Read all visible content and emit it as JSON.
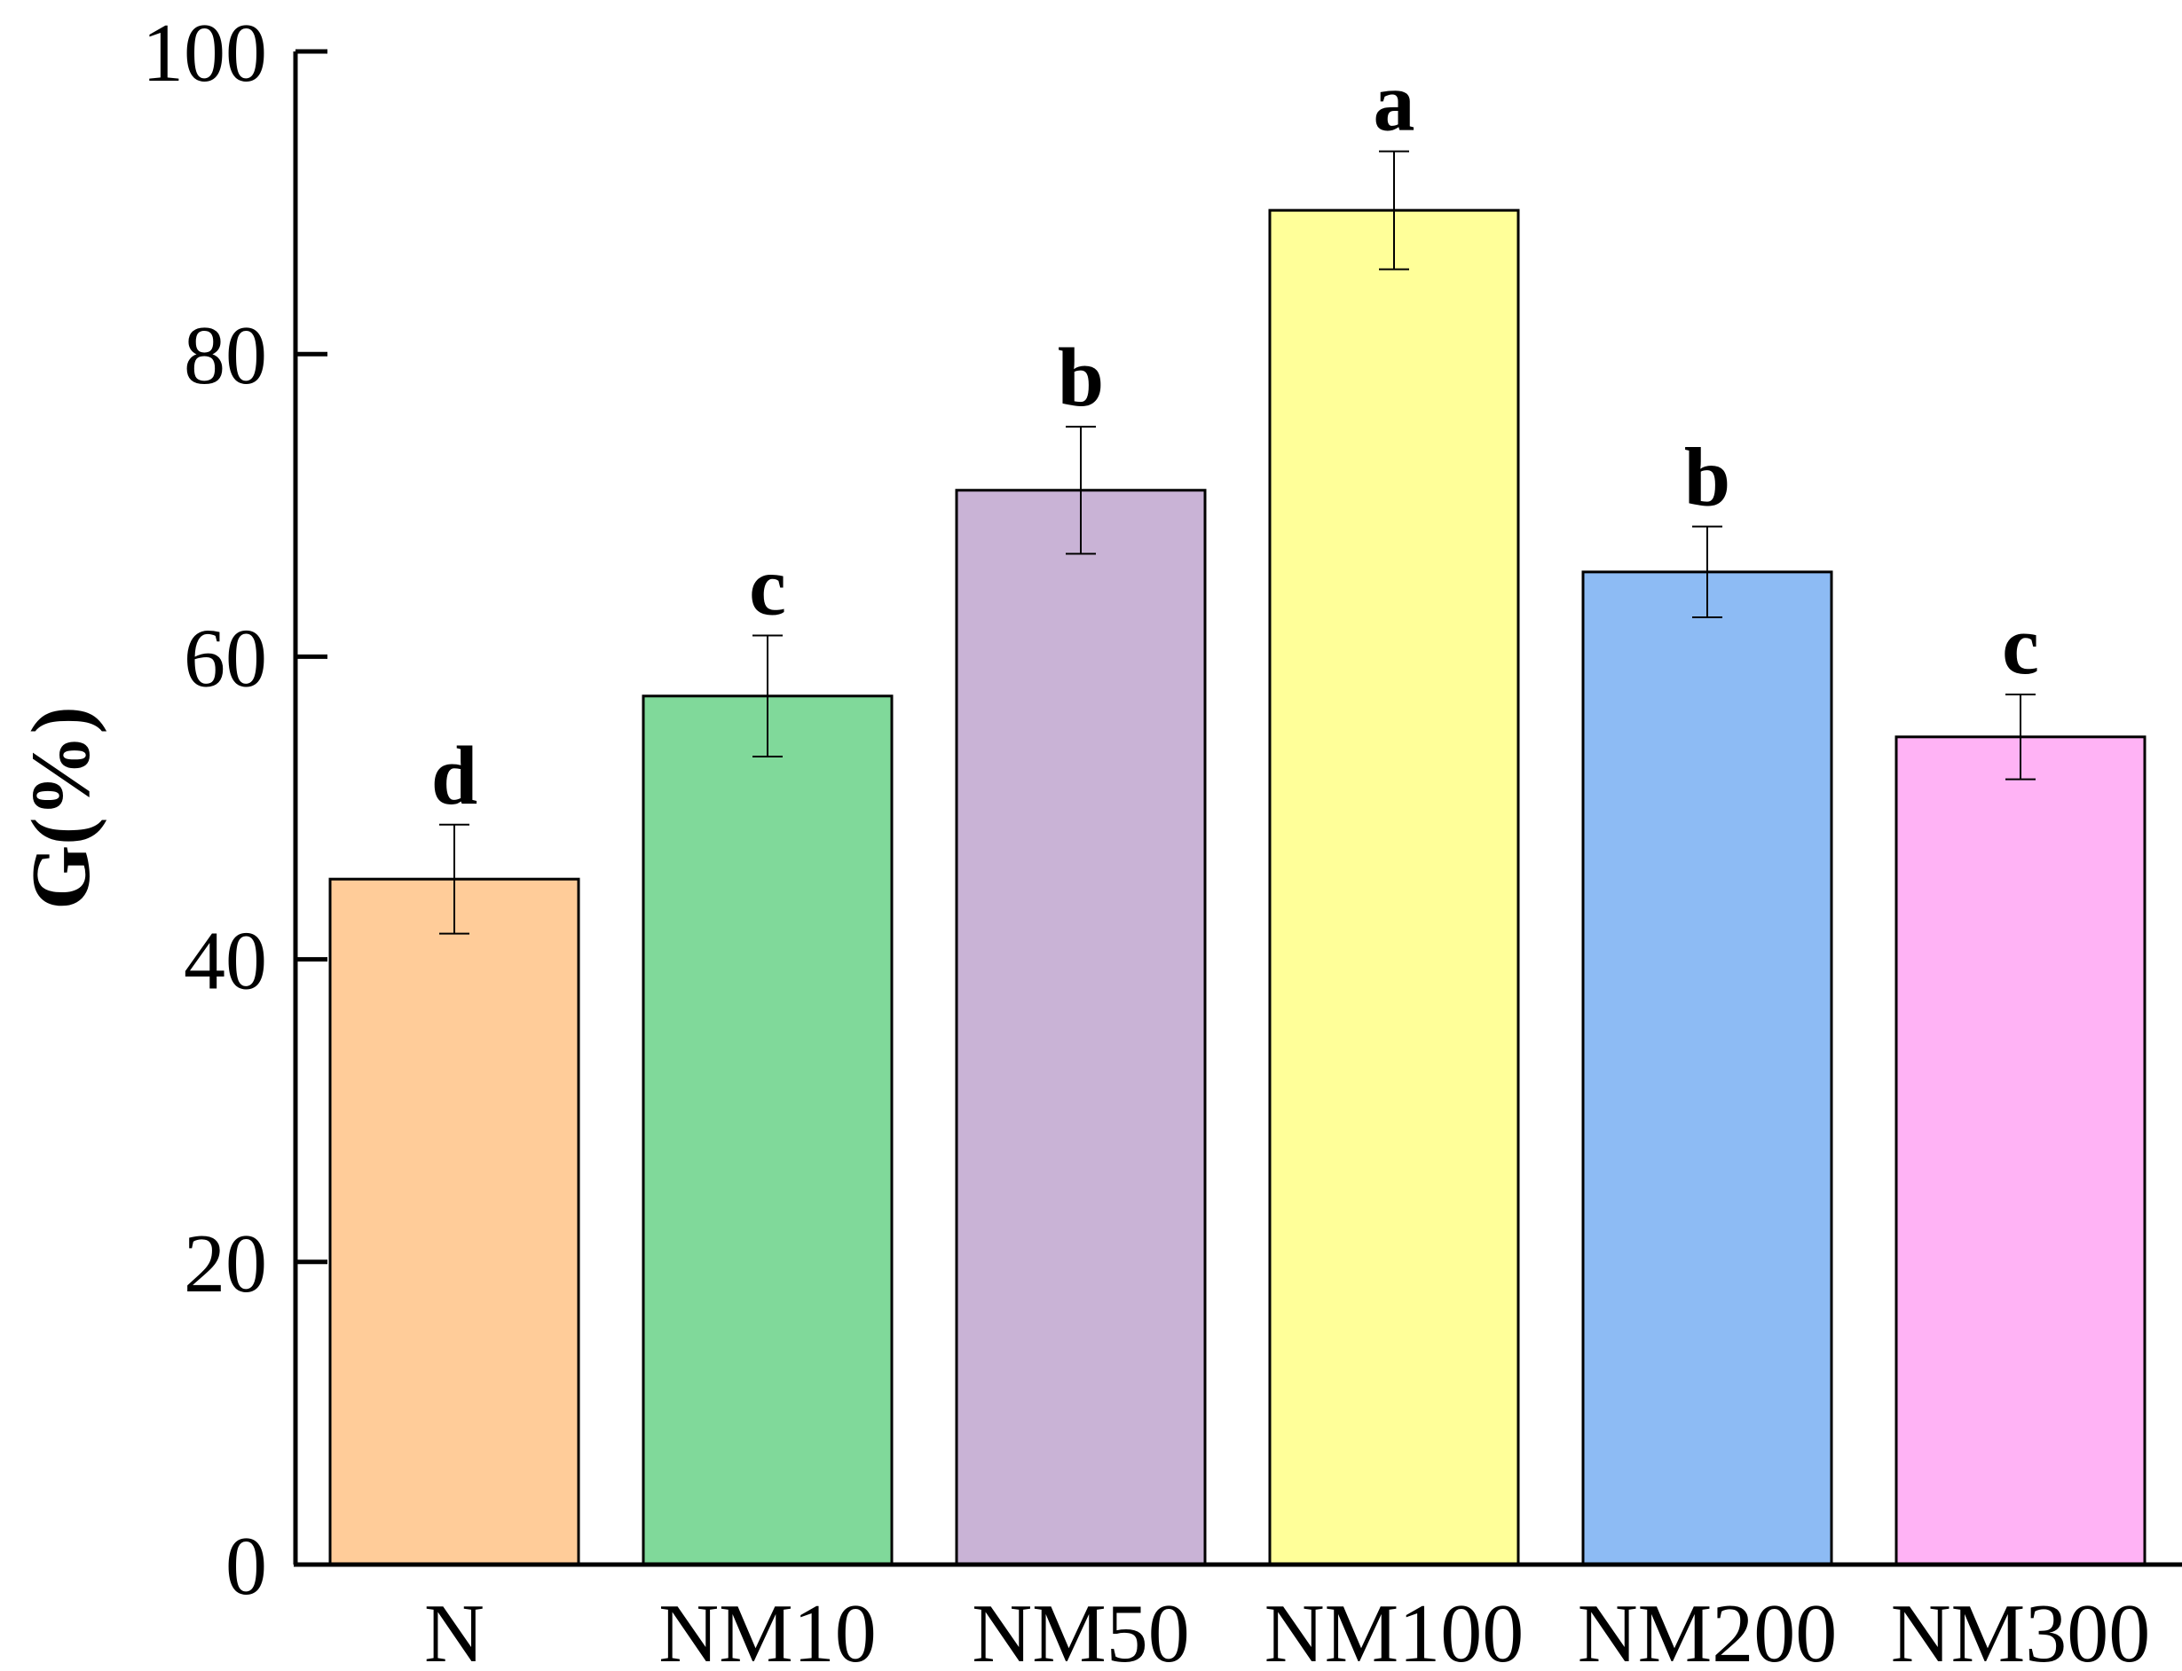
{
  "chart_data": {
    "type": "bar",
    "title": "",
    "xlabel": "",
    "ylabel": "G(%)",
    "ylim": [
      0,
      100
    ],
    "yticks": [
      0,
      20,
      40,
      60,
      80,
      100
    ],
    "ytick_labels": [
      "0",
      "20",
      "40",
      "60",
      "80",
      "100"
    ],
    "grid": false,
    "categories": [
      "N",
      "NM10",
      "NM50",
      "NM100",
      "NM200",
      "NM300"
    ],
    "values": [
      45.3,
      57.4,
      71.0,
      89.5,
      65.6,
      54.7
    ],
    "errors": [
      3.6,
      4.0,
      4.2,
      3.9,
      3.0,
      2.8
    ],
    "significance": [
      "d",
      "c",
      "b",
      "a",
      "b",
      "c"
    ],
    "colors": [
      "#FFCC99",
      "#80D99A",
      "#C9B3D6",
      "#FFFF99",
      "#8DBBF4",
      "#FFB3F5"
    ]
  }
}
